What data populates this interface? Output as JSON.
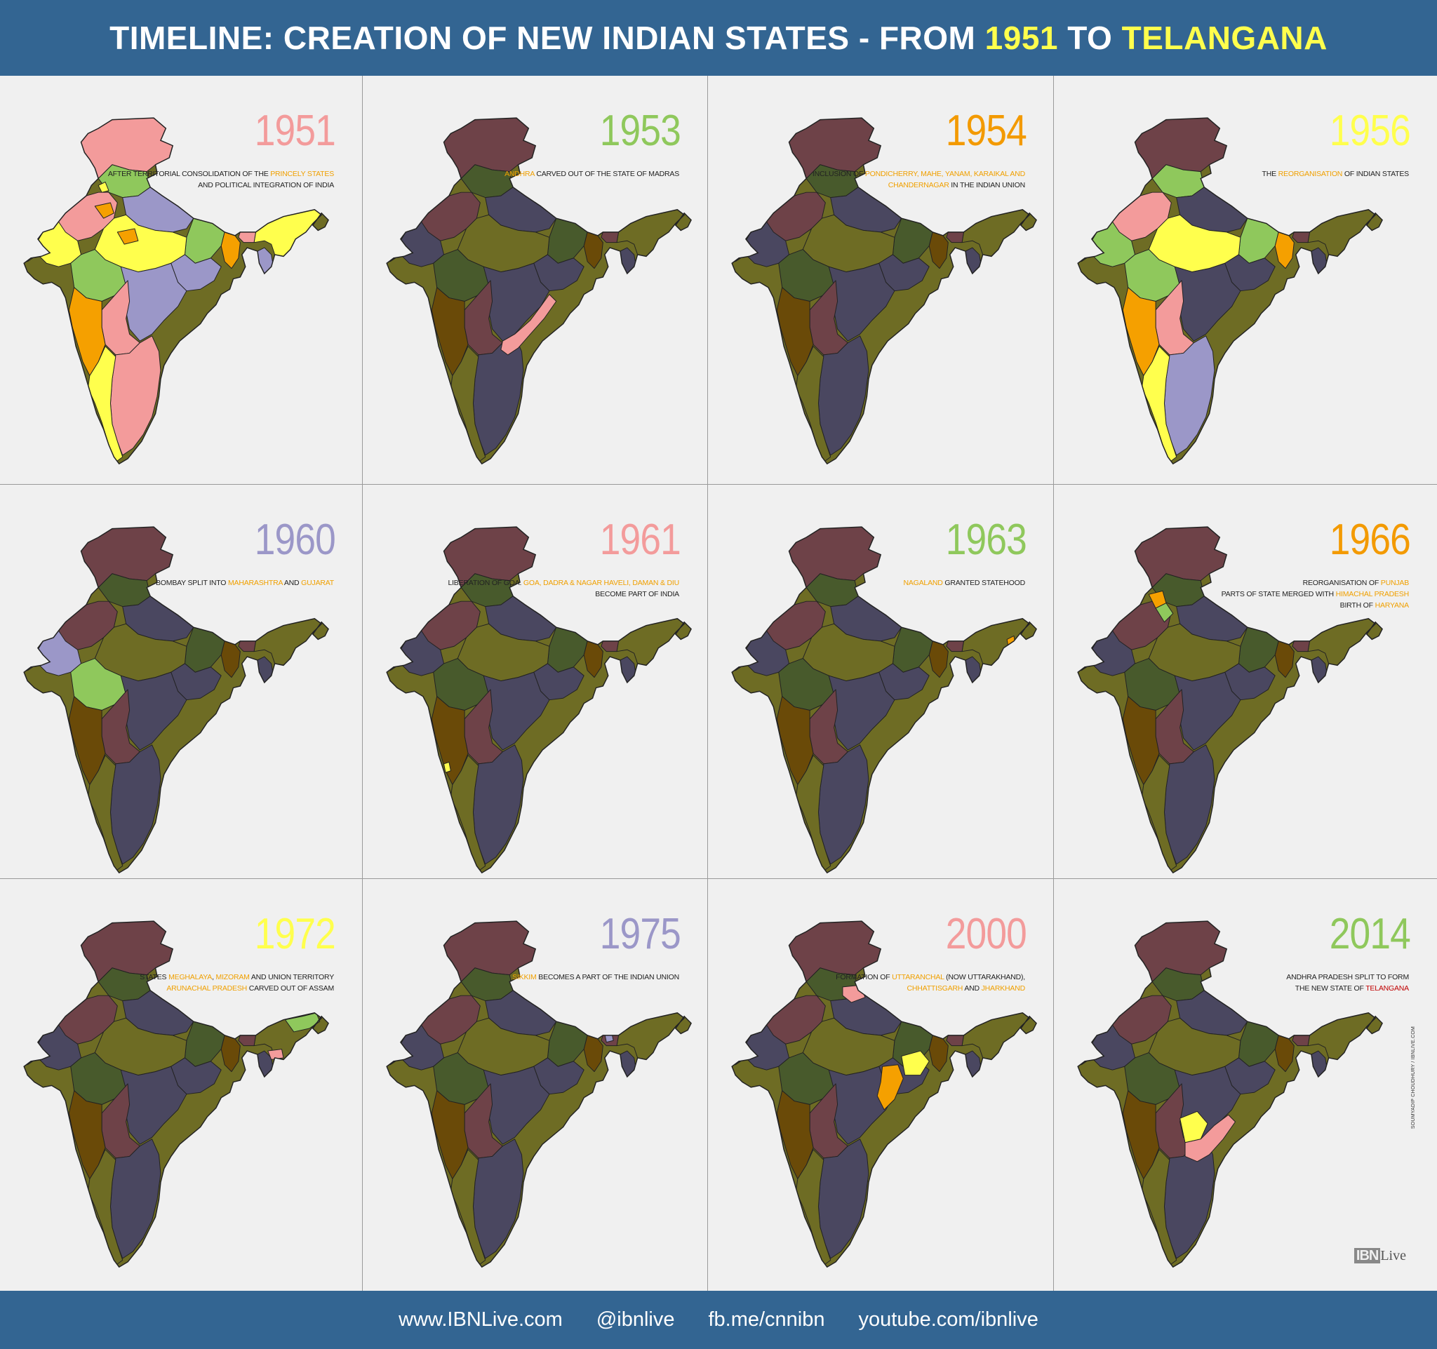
{
  "header": {
    "parts": [
      "TIMELINE:",
      " CREATION OF NEW INDIAN STATES - FROM ",
      "1951",
      " TO ",
      "TELANGANA"
    ]
  },
  "colors": {
    "header_bg": "#336592",
    "highlight_yellow": "#ffff4d",
    "accent_orange": "#f0a000",
    "pink": "#f39b9b",
    "green": "#8fc85c",
    "orange": "#f5a000",
    "yellow": "#ffff4d",
    "lavender": "#9b97c8",
    "maroon": "#6e4248",
    "olive": "#6e6c24",
    "dark_green": "#485a2c",
    "slate": "#4a4760",
    "brown": "#6a4a08"
  },
  "panels": [
    {
      "year": "1951",
      "year_color": "#f39b9b",
      "desc": [
        [
          "AFTER TERRITORIAL CONSOLIDATION OF THE ",
          "n"
        ],
        [
          "PRINCELY STATES",
          "h"
        ],
        [
          " AND POLITICAL INTEGRATION OF INDIA",
          "n"
        ]
      ]
    },
    {
      "year": "1953",
      "year_color": "#8fc85c",
      "desc": [
        [
          "ANDHRA",
          "h"
        ],
        [
          " CARVED OUT OF THE STATE OF MADRAS",
          "n"
        ]
      ]
    },
    {
      "year": "1954",
      "year_color": "#f39a00",
      "desc": [
        [
          "INCLUSION OF ",
          "n"
        ],
        [
          "PONDICHERRY,  MAHE, YANAM, KARAIKAL AND CHANDERNAGAR",
          "h"
        ],
        [
          " IN THE INDIAN UNION",
          "n"
        ]
      ]
    },
    {
      "year": "1956",
      "year_color": "#ffff4d",
      "desc": [
        [
          "THE ",
          "n"
        ],
        [
          "REORGANISATION",
          "h"
        ],
        [
          " OF INDIAN STATES",
          "n"
        ]
      ]
    },
    {
      "year": "1960",
      "year_color": "#9b97c8",
      "desc": [
        [
          "BOMBAY SPLIT INTO ",
          "n"
        ],
        [
          "MAHARASHTRA",
          "h"
        ],
        [
          " AND ",
          "n"
        ],
        [
          "GUJARAT",
          "h"
        ]
      ]
    },
    {
      "year": "1961",
      "year_color": "#f39b9b",
      "desc": [
        [
          "LIBERATION OF GOA. ",
          "n"
        ],
        [
          "GOA, DADRA & NAGAR HAVELI, DAMAN & DIU",
          "h"
        ],
        [
          " BECOME PART OF INDIA",
          "n"
        ]
      ]
    },
    {
      "year": "1963",
      "year_color": "#8fc85c",
      "desc": [
        [
          "NAGALAND",
          "h"
        ],
        [
          " GRANTED STATEHOOD",
          "n"
        ]
      ]
    },
    {
      "year": "1966",
      "year_color": "#f39a00",
      "desc": [
        [
          "REORGANISATION OF ",
          "n"
        ],
        [
          "PUNJAB",
          "h"
        ],
        [
          "\nPARTS OF STATE MERGED WITH ",
          "n"
        ],
        [
          "HIMACHAL PRADESH",
          "h"
        ],
        [
          "\nBIRTH OF ",
          "n"
        ],
        [
          "HARYANA",
          "h"
        ]
      ]
    },
    {
      "year": "1972",
      "year_color": "#ffff4d",
      "desc": [
        [
          "STATES ",
          "n"
        ],
        [
          "MEGHALAYA",
          "h"
        ],
        [
          ", ",
          "n"
        ],
        [
          "MIZORAM",
          "h"
        ],
        [
          " AND UNION TERRITORY ",
          "n"
        ],
        [
          "ARUNACHAL PRADESH",
          "h"
        ],
        [
          " CARVED OUT OF ASSAM",
          "n"
        ]
      ]
    },
    {
      "year": "1975",
      "year_color": "#9b97c8",
      "desc": [
        [
          "SIKKIM",
          "h"
        ],
        [
          " BECOMES A PART OF THE INDIAN UNION",
          "n"
        ]
      ]
    },
    {
      "year": "2000",
      "year_color": "#f39b9b",
      "desc": [
        [
          "FORMATION OF ",
          "n"
        ],
        [
          "UTTARANCHAL",
          "h"
        ],
        [
          " (NOW UTTARAKHAND),\n",
          "n"
        ],
        [
          "CHHATTISGARH",
          "h"
        ],
        [
          " AND ",
          "n"
        ],
        [
          "JHARKHAND",
          "h"
        ]
      ]
    },
    {
      "year": "2014",
      "year_color": "#8fc85c",
      "desc": [
        [
          "ANDHRA PRADESH SPLIT TO FORM\nTHE NEW STATE OF ",
          "n"
        ],
        [
          "TELANGANA",
          "r"
        ]
      ]
    }
  ],
  "credit": "SOUMYADIP CHOUDHURY / IBNLIVE.COM",
  "logo": {
    "box": "IBN",
    "text": "Live"
  },
  "footer": {
    "links": [
      "www.IBNLive.com",
      "@ibnlive",
      "fb.me/cnnibn",
      "youtube.com/ibnlive"
    ]
  }
}
